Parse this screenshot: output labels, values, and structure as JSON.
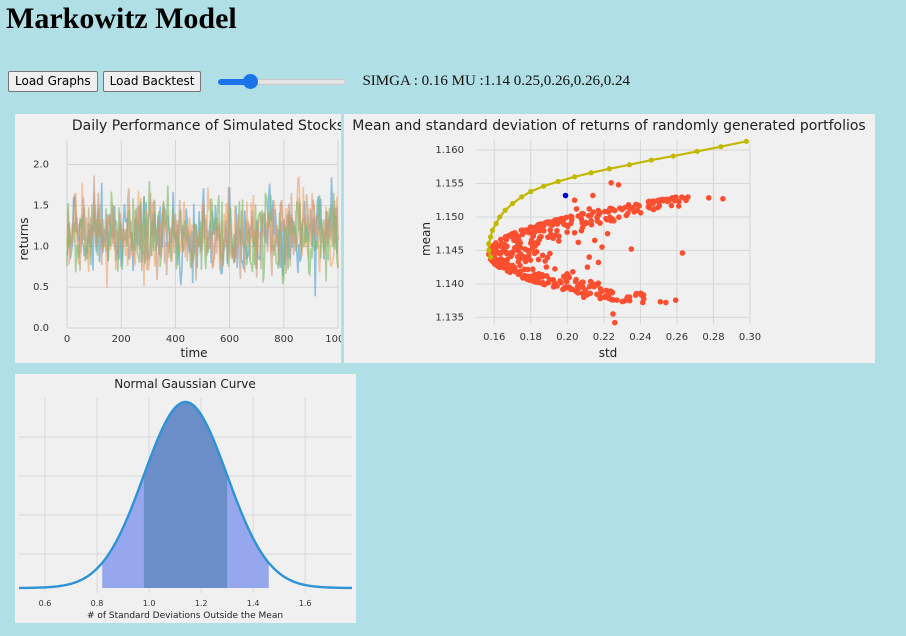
{
  "page": {
    "title": "Markowitz Model"
  },
  "controls": {
    "load_graphs_label": "Load Graphs",
    "load_backtest_label": "Load Backtest",
    "slider_value_fraction": 0.25,
    "readout": "SIMGA : 0.16 MU :1.14 0.25,0.26,0.26,0.24"
  },
  "colors": {
    "page_bg": "#b0dfe5",
    "slider": "#1a73e8",
    "panel_bg": "#f0f0f0"
  },
  "chart_data": [
    {
      "type": "line",
      "title": "Daily Performance of Simulated Stocks",
      "xlabel": "time",
      "ylabel": "returns",
      "xlim": [
        0,
        1000
      ],
      "ylim": [
        0,
        2.3
      ],
      "x_ticks": [
        0,
        200,
        400,
        600,
        800,
        1000
      ],
      "y_ticks": [
        "0.0",
        "0.5",
        "1.0",
        "1.5",
        "2.0"
      ],
      "grid": true,
      "series": [
        {
          "color": "#4c9ed2",
          "mean": 1.14,
          "std": 0.27
        },
        {
          "color": "#f4a466",
          "mean": 1.14,
          "std": 0.26
        },
        {
          "color": "#78b865",
          "mean": 1.14,
          "std": 0.25
        },
        {
          "color": "#c69a7c",
          "mean": 1.14,
          "std": 0.24
        }
      ]
    },
    {
      "type": "scatter",
      "title": "Mean and standard deviation of returns of randomly generated portfolios",
      "xlabel": "std",
      "ylabel": "mean",
      "xlim": [
        0.15,
        0.3
      ],
      "ylim": [
        1.134,
        1.1615
      ],
      "x_ticks": [
        "0.16",
        "0.18",
        "0.20",
        "0.22",
        "0.24",
        "0.26",
        "0.28",
        "0.30"
      ],
      "y_ticks": [
        "1.135",
        "1.140",
        "1.145",
        "1.150",
        "1.155",
        "1.160"
      ],
      "grid": true,
      "points_color": "#fc4f30",
      "frontier_color": "#c2b800",
      "optimal_color": "#0000cc",
      "optimal_point": [
        0.199,
        1.1532
      ],
      "outliers": [
        [
          0.263,
          1.1446
        ],
        [
          0.235,
          1.1452
        ],
        [
          0.226,
          1.1342
        ],
        [
          0.225,
          1.1355
        ],
        [
          0.222,
          1.1475
        ],
        [
          0.215,
          1.1465
        ],
        [
          0.218,
          1.1378
        ],
        [
          0.228,
          1.1548
        ],
        [
          0.224,
          1.1551
        ],
        [
          0.214,
          1.1532
        ],
        [
          0.212,
          1.1512
        ],
        [
          0.21,
          1.1492
        ],
        [
          0.206,
          1.1462
        ],
        [
          0.205,
          1.1512
        ],
        [
          0.203,
          1.1418
        ],
        [
          0.207,
          1.1395
        ],
        [
          0.211,
          1.1425
        ],
        [
          0.209,
          1.138
        ],
        [
          0.201,
          1.1395
        ],
        [
          0.212,
          1.144
        ],
        [
          0.219,
          1.1455
        ],
        [
          0.217,
          1.1432
        ],
        [
          0.204,
          1.1525
        ],
        [
          0.208,
          1.1505
        ]
      ],
      "frontier": [
        [
          0.158,
          1.144
        ],
        [
          0.157,
          1.145
        ],
        [
          0.157,
          1.146
        ],
        [
          0.158,
          1.147
        ],
        [
          0.159,
          1.148
        ],
        [
          0.161,
          1.149
        ],
        [
          0.163,
          1.15
        ],
        [
          0.166,
          1.151
        ],
        [
          0.17,
          1.152
        ],
        [
          0.175,
          1.153
        ],
        [
          0.18,
          1.1538
        ],
        [
          0.187,
          1.1546
        ],
        [
          0.195,
          1.1553
        ],
        [
          0.204,
          1.156
        ],
        [
          0.213,
          1.1566
        ],
        [
          0.223,
          1.1572
        ],
        [
          0.234,
          1.1578
        ],
        [
          0.246,
          1.1585
        ],
        [
          0.258,
          1.1591
        ],
        [
          0.271,
          1.1598
        ],
        [
          0.284,
          1.1605
        ],
        [
          0.298,
          1.1613
        ]
      ]
    },
    {
      "type": "area",
      "title": "Normal Gaussian Curve",
      "xlabel": "# of Standard Deviations Outside the Mean",
      "xlim": [
        0.5,
        1.78
      ],
      "x_ticks": [
        "0.6",
        "0.8",
        "1.0",
        "1.2",
        "1.4",
        "1.6"
      ],
      "grid": true,
      "mean": 1.14,
      "std": 0.16,
      "bands": [
        {
          "from": 0.82,
          "to": 1.46,
          "color": "#97a7ee"
        },
        {
          "from": 0.98,
          "to": 1.3,
          "color": "#6b8ec9"
        }
      ],
      "line_color": "#2e93d6"
    }
  ]
}
